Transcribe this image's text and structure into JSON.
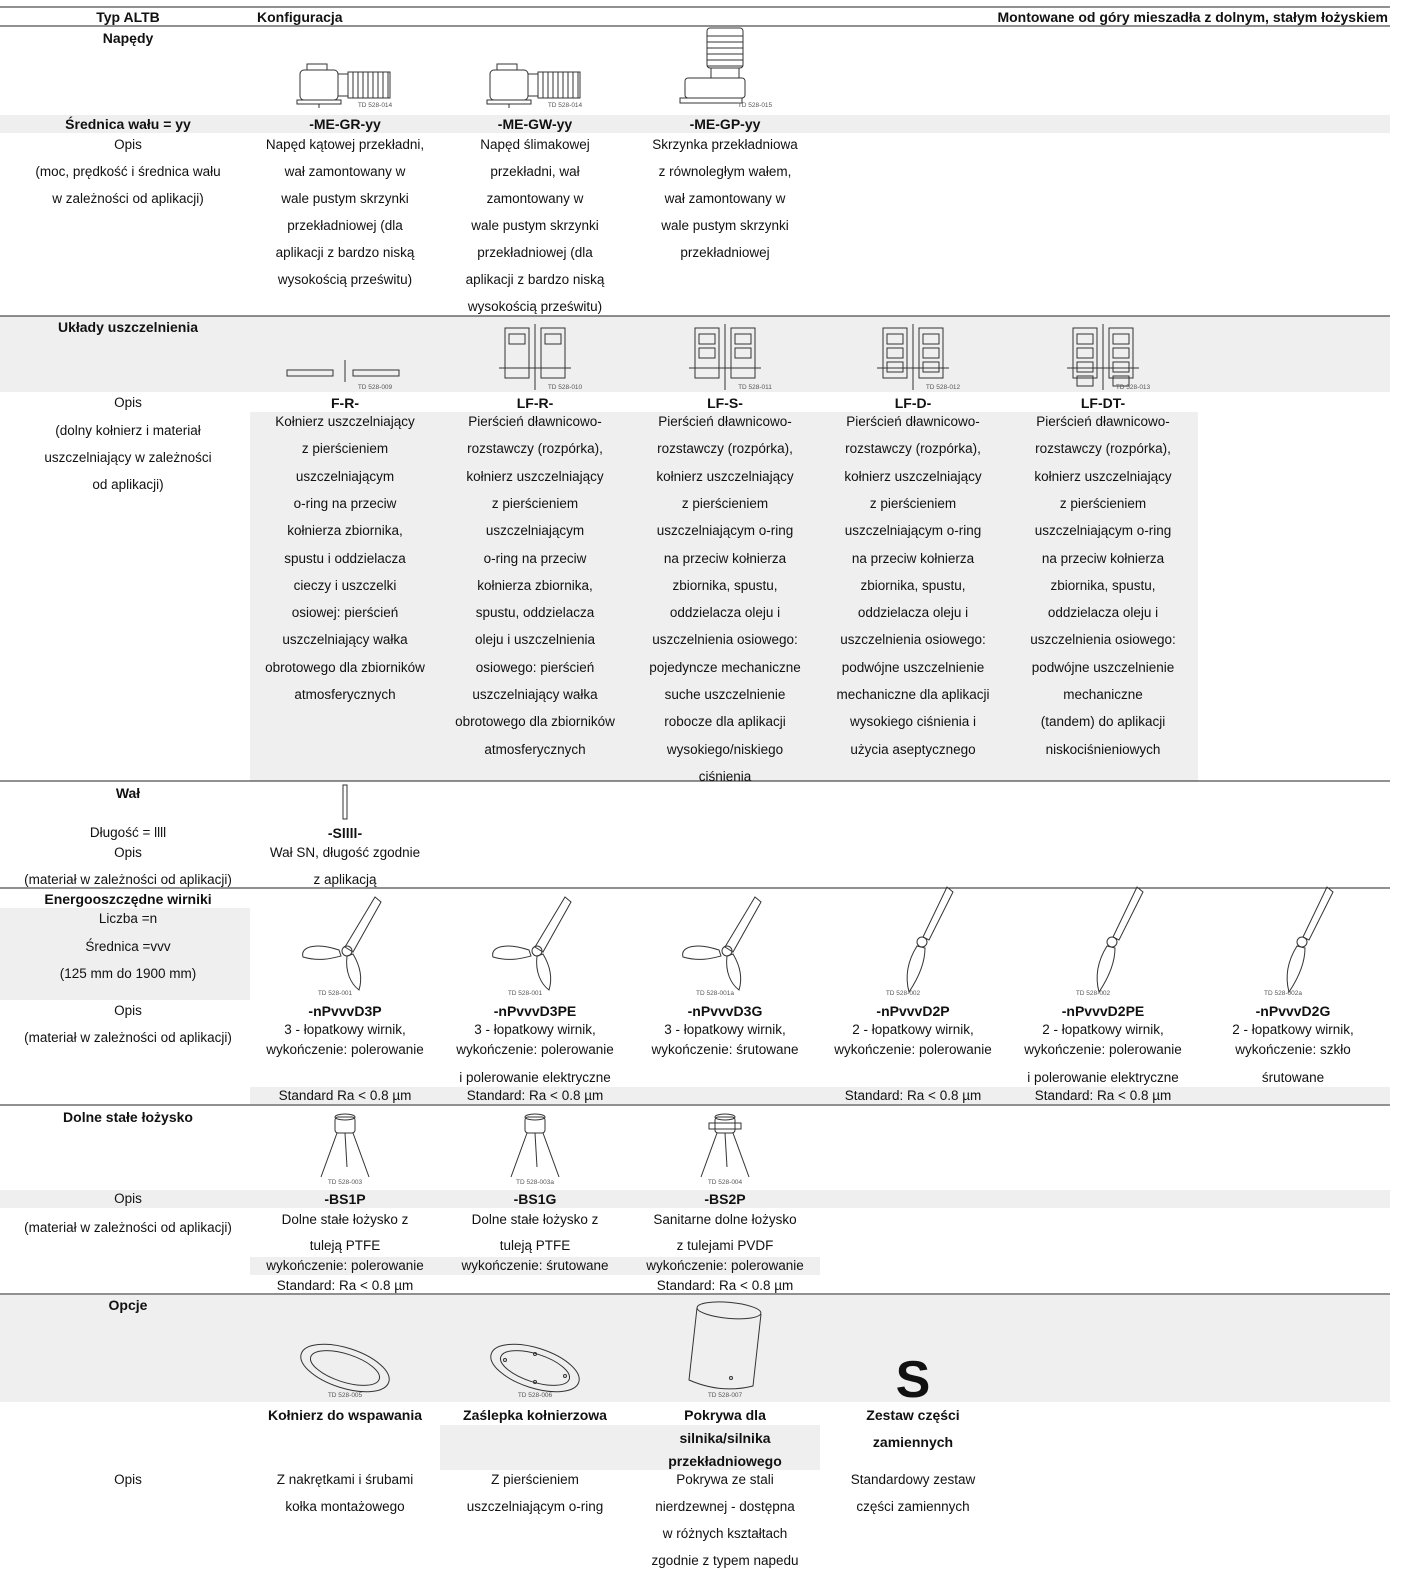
{
  "header": {
    "type": "Typ ALTB",
    "config": "Konfiguracja",
    "title": "Montowane od góry mieszadła z dolnym, stałym łożyskiem"
  },
  "drives": {
    "title": "Napędy",
    "figures": [
      "TD 528-014",
      "TD 528-014",
      "TD 528-015"
    ],
    "label": "Średnica wału = yy",
    "names": [
      "-ME-GR-yy",
      "-ME-GW-yy",
      "-ME-GP-yy"
    ],
    "notes": [
      "Opis",
      "(moc, prędkość i średnica wału",
      "w zależności od aplikacji)"
    ],
    "descriptions": [
      [
        "Napęd kątowej przekładni,",
        "wał zamontowany w",
        "wale pustym skrzynki",
        "przekładniowej (dla",
        "aplikacji z bardzo niską",
        "wysokością prześwitu)"
      ],
      [
        "Napęd ślimakowej",
        "przekładni,  wał",
        "zamontowany w",
        "wale pustym skrzynki",
        "przekładniowej (dla",
        "aplikacji z bardzo niską",
        "wysokością prześwitu)"
      ],
      [
        "Skrzynka przekładniowa",
        "z równoległym wałem,",
        "wał zamontowany w",
        "wale pustym skrzynki",
        "przekładniowej"
      ]
    ]
  },
  "seals": {
    "title": "Układy uszczelnienia",
    "figures": [
      "TD 528-009",
      "TD 528-010",
      "TD 528-011",
      "TD 528-012",
      "TD 528-013"
    ],
    "label": "Opis",
    "names": [
      "F-R-",
      "LF-R-",
      "LF-S-",
      "LF-D-",
      "LF-DT-"
    ],
    "notes": [
      "(dolny kołnierz i materiał",
      "uszczelniający w zależności",
      "od aplikacji)"
    ],
    "descriptions": [
      [
        "Kołnierz uszczelniający",
        "z pierścieniem",
        "uszczelniającym",
        "o-ring na przeciw",
        "kołnierza zbiornika,",
        "spustu i oddzielacza",
        "cieczy i uszczelki",
        "osiowej:  pierścień",
        "uszczelniający wałka",
        "obrotowego dla zbiorników",
        "atmosferycznych"
      ],
      [
        "Pierścień dławnicowo-",
        "rozstawczy (rozpórka),",
        "kołnierz uszczelniający",
        "z pierścieniem",
        "uszczelniającym",
        "o-ring na przeciw",
        "kołnierza zbiornika,",
        "spustu, oddzielacza",
        "oleju i uszczelnienia",
        "osiowego:  pierścień",
        "uszczelniający wałka",
        "obrotowego dla zbiorników",
        "atmosferycznych"
      ],
      [
        "Pierścień dławnicowo-",
        "rozstawczy (rozpórka),",
        "kołnierz uszczelniający",
        "z pierścieniem",
        "uszczelniającym o-ring",
        "na przeciw kołnierza",
        "zbiornika, spustu,",
        "oddzielacza oleju i",
        "uszczelnienia osiowego:",
        "pojedyncze mechaniczne",
        "suche uszczelnienie",
        "robocze dla aplikacji",
        "wysokiego/niskiego",
        "ciśnienia"
      ],
      [
        "Pierścień dławnicowo-",
        "rozstawczy (rozpórka),",
        "kołnierz uszczelniający",
        "z pierścieniem",
        "uszczelniającym o-ring",
        "na przeciw kołnierza",
        "zbiornika, spustu,",
        "oddzielacza oleju i",
        "uszczelnienia osiowego:",
        "podwójne uszczelnienie",
        "mechaniczne dla aplikacji",
        "wysokiego ciśnienia i",
        "użycia aseptycznego"
      ],
      [
        "Pierścień dławnicowo-",
        "rozstawczy (rozpórka),",
        "kołnierz uszczelniający",
        "z pierścieniem",
        "uszczelniającym o-ring",
        "na przeciw kołnierza",
        "zbiornika, spustu,",
        "oddzielacza oleju i",
        "uszczelnienia osiowego:",
        "podwójne uszczelnienie",
        "mechaniczne",
        "(tandem) do aplikacji",
        "niskociśnieniowych"
      ]
    ]
  },
  "shaft": {
    "title": "Wał",
    "label": "Długość = llll",
    "names": [
      "-Sllll-"
    ],
    "notes": [
      "Opis",
      "(materiał w zależności od aplikacji)"
    ],
    "descriptions": [
      [
        "Wał SN, długość zgodnie",
        "z aplikacją"
      ]
    ]
  },
  "impellers": {
    "title": "Energooszczędne wirniki",
    "params": [
      "Liczba =n",
      "Średnica =vvv",
      "(125 mm do 1900 mm)"
    ],
    "figures": [
      "TD 528-001",
      "TD 528-001",
      "TD 528-001a",
      "TD 528-002",
      "TD 528-002",
      "TD 528-002a"
    ],
    "label": "Opis",
    "names": [
      "-nPvvvD3P",
      "-nPvvvD3PE",
      "-nPvvvD3G",
      "-nPvvvD2P",
      "-nPvvvD2PE",
      "-nPvvvD2G"
    ],
    "notes": [
      "(materiał w zależności od aplikacji)"
    ],
    "descriptions": [
      [
        "3 - łopatkowy wirnik,",
        "wykończenie: polerowanie"
      ],
      [
        "3 - łopatkowy wirnik,",
        "wykończenie: polerowanie",
        "i polerowanie elektryczne"
      ],
      [
        "3 - łopatkowy wirnik,",
        "wykończenie: śrutowane"
      ],
      [
        "2 - łopatkowy wirnik,",
        "wykończenie: polerowanie"
      ],
      [
        "2 - łopatkowy wirnik,",
        "wykończenie: polerowanie",
        "i polerowanie elektryczne"
      ],
      [
        "2 - łopatkowy wirnik,",
        "wykończenie:  szkło",
        "śrutowane"
      ]
    ],
    "standards": [
      "Standard Ra < 0.8 µm",
      "Standard:  Ra < 0.8 µm",
      null,
      "Standard:  Ra < 0.8 µm",
      "Standard:  Ra < 0.8 µm",
      null
    ]
  },
  "bearings": {
    "title": "Dolne stałe łożysko",
    "figures": [
      "TD 528-003",
      "TD 528-003a",
      "TD 528-004"
    ],
    "label": "Opis",
    "names": [
      "-BS1P",
      "-BS1G",
      "-BS2P"
    ],
    "notes": [
      "(materiał w zależności od aplikacji)"
    ],
    "descriptions": [
      [
        "Dolne stałe łożysko z",
        "tuleją PTFE"
      ],
      [
        "Dolne stałe łożysko z",
        "tuleją PTFE"
      ],
      [
        "Sanitarne dolne łożysko",
        "z tulejami PVDF"
      ]
    ],
    "finishes": [
      "wykończenie: polerowanie",
      "wykończenie: śrutowane",
      "wykończenie: polerowanie"
    ],
    "standards": [
      "Standard: Ra < 0.8 µm",
      null,
      "Standard:  Ra < 0.8 µm"
    ]
  },
  "options": {
    "title": "Opcje",
    "figures": [
      "TD 528-005",
      "TD 528-006",
      "TD 528-007"
    ],
    "symbol": "S",
    "names": [
      [
        "Kołnierz do wspawania"
      ],
      [
        "Zaślepka kołnierzowa"
      ],
      [
        "Pokrywa dla",
        "silnika/silnika",
        "przekładniowego"
      ],
      [
        "Zestaw  części",
        "zamiennych"
      ]
    ],
    "label": "Opis",
    "descriptions": [
      [
        "Z nakrętkami i śrubami",
        "kołka montażowego"
      ],
      [
        "Z  pierścieniem",
        "uszczelniającym o-ring"
      ],
      [
        "Pokrywa ze stali",
        "nierdzewnej - dostępna",
        "w różnych kształtach",
        "zgodnie z typem napedu"
      ],
      [
        "Standardowy zestaw",
        "części zamiennych"
      ]
    ]
  }
}
